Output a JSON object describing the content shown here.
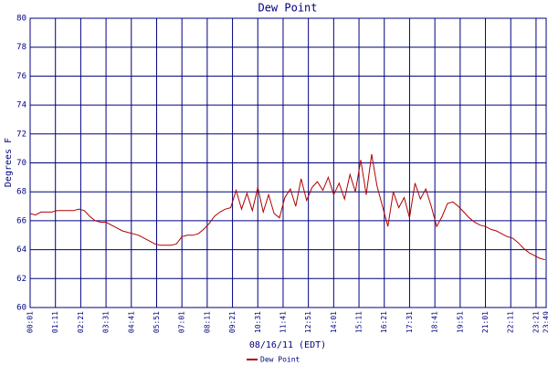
{
  "chart_data": {
    "type": "line",
    "title": "Dew Point",
    "y_label": "Degrees F",
    "x_label": "08/16/11 (EDT)",
    "xlim": [
      1,
      1429
    ],
    "ylim": [
      60,
      80
    ],
    "yticks": [
      60,
      62,
      64,
      66,
      68,
      70,
      72,
      74,
      76,
      78,
      80
    ],
    "xticks": [
      {
        "value": 1,
        "label": "00:01"
      },
      {
        "value": 71,
        "label": "01:11"
      },
      {
        "value": 141,
        "label": "02:21"
      },
      {
        "value": 211,
        "label": "03:31"
      },
      {
        "value": 281,
        "label": "04:41"
      },
      {
        "value": 351,
        "label": "05:51"
      },
      {
        "value": 421,
        "label": "07:01"
      },
      {
        "value": 491,
        "label": "08:11"
      },
      {
        "value": 561,
        "label": "09:21"
      },
      {
        "value": 631,
        "label": "10:31"
      },
      {
        "value": 701,
        "label": "11:41"
      },
      {
        "value": 771,
        "label": "12:51"
      },
      {
        "value": 841,
        "label": "14:01"
      },
      {
        "value": 911,
        "label": "15:11"
      },
      {
        "value": 981,
        "label": "16:21"
      },
      {
        "value": 1051,
        "label": "17:31"
      },
      {
        "value": 1121,
        "label": "18:41"
      },
      {
        "value": 1191,
        "label": "19:51"
      },
      {
        "value": 1261,
        "label": "21:01"
      },
      {
        "value": 1331,
        "label": "22:11"
      },
      {
        "value": 1401,
        "label": "23:21"
      },
      {
        "value": 1429,
        "label": "23:49"
      }
    ],
    "grid": true,
    "legend": "bottom",
    "x": [
      1,
      16,
      31,
      46,
      61,
      76,
      91,
      106,
      121,
      136,
      151,
      166,
      181,
      196,
      211,
      226,
      241,
      256,
      271,
      286,
      301,
      316,
      331,
      346,
      361,
      376,
      391,
      406,
      421,
      436,
      451,
      466,
      481,
      496,
      511,
      526,
      541,
      556,
      571,
      586,
      601,
      616,
      631,
      646,
      661,
      676,
      691,
      706,
      721,
      736,
      751,
      766,
      781,
      796,
      811,
      826,
      841,
      856,
      871,
      886,
      901,
      916,
      931,
      946,
      961,
      976,
      991,
      1006,
      1021,
      1036,
      1051,
      1066,
      1081,
      1096,
      1111,
      1126,
      1141,
      1156,
      1171,
      1186,
      1201,
      1216,
      1231,
      1246,
      1261,
      1276,
      1291,
      1306,
      1321,
      1336,
      1351,
      1366,
      1381,
      1396,
      1411,
      1426
    ],
    "series": [
      {
        "name": "Dew Point",
        "color": "#b00000",
        "values": [
          66.5,
          66.4,
          66.6,
          66.6,
          66.6,
          66.7,
          66.7,
          66.7,
          66.7,
          66.8,
          66.7,
          66.3,
          66.0,
          65.9,
          65.9,
          65.7,
          65.5,
          65.3,
          65.2,
          65.1,
          65.0,
          64.8,
          64.6,
          64.4,
          64.3,
          64.3,
          64.3,
          64.4,
          64.9,
          65.0,
          65.0,
          65.1,
          65.4,
          65.8,
          66.3,
          66.6,
          66.8,
          66.9,
          68.1,
          66.8,
          67.9,
          66.7,
          68.3,
          66.6,
          67.8,
          66.5,
          66.2,
          67.6,
          68.2,
          67.0,
          68.9,
          67.4,
          68.3,
          68.7,
          68.1,
          69.0,
          67.8,
          68.6,
          67.5,
          69.2,
          68.0,
          70.2,
          67.8,
          70.6,
          68.4,
          67.0,
          65.6,
          68.0,
          66.9,
          67.6,
          66.2,
          68.6,
          67.5,
          68.2,
          67.0,
          65.6,
          66.3,
          67.2,
          67.3,
          67.0,
          66.6,
          66.2,
          65.9,
          65.7,
          65.6,
          65.4,
          65.3,
          65.1,
          64.9,
          64.8,
          64.5,
          64.1,
          63.8,
          63.6,
          63.4,
          63.3
        ]
      }
    ]
  }
}
